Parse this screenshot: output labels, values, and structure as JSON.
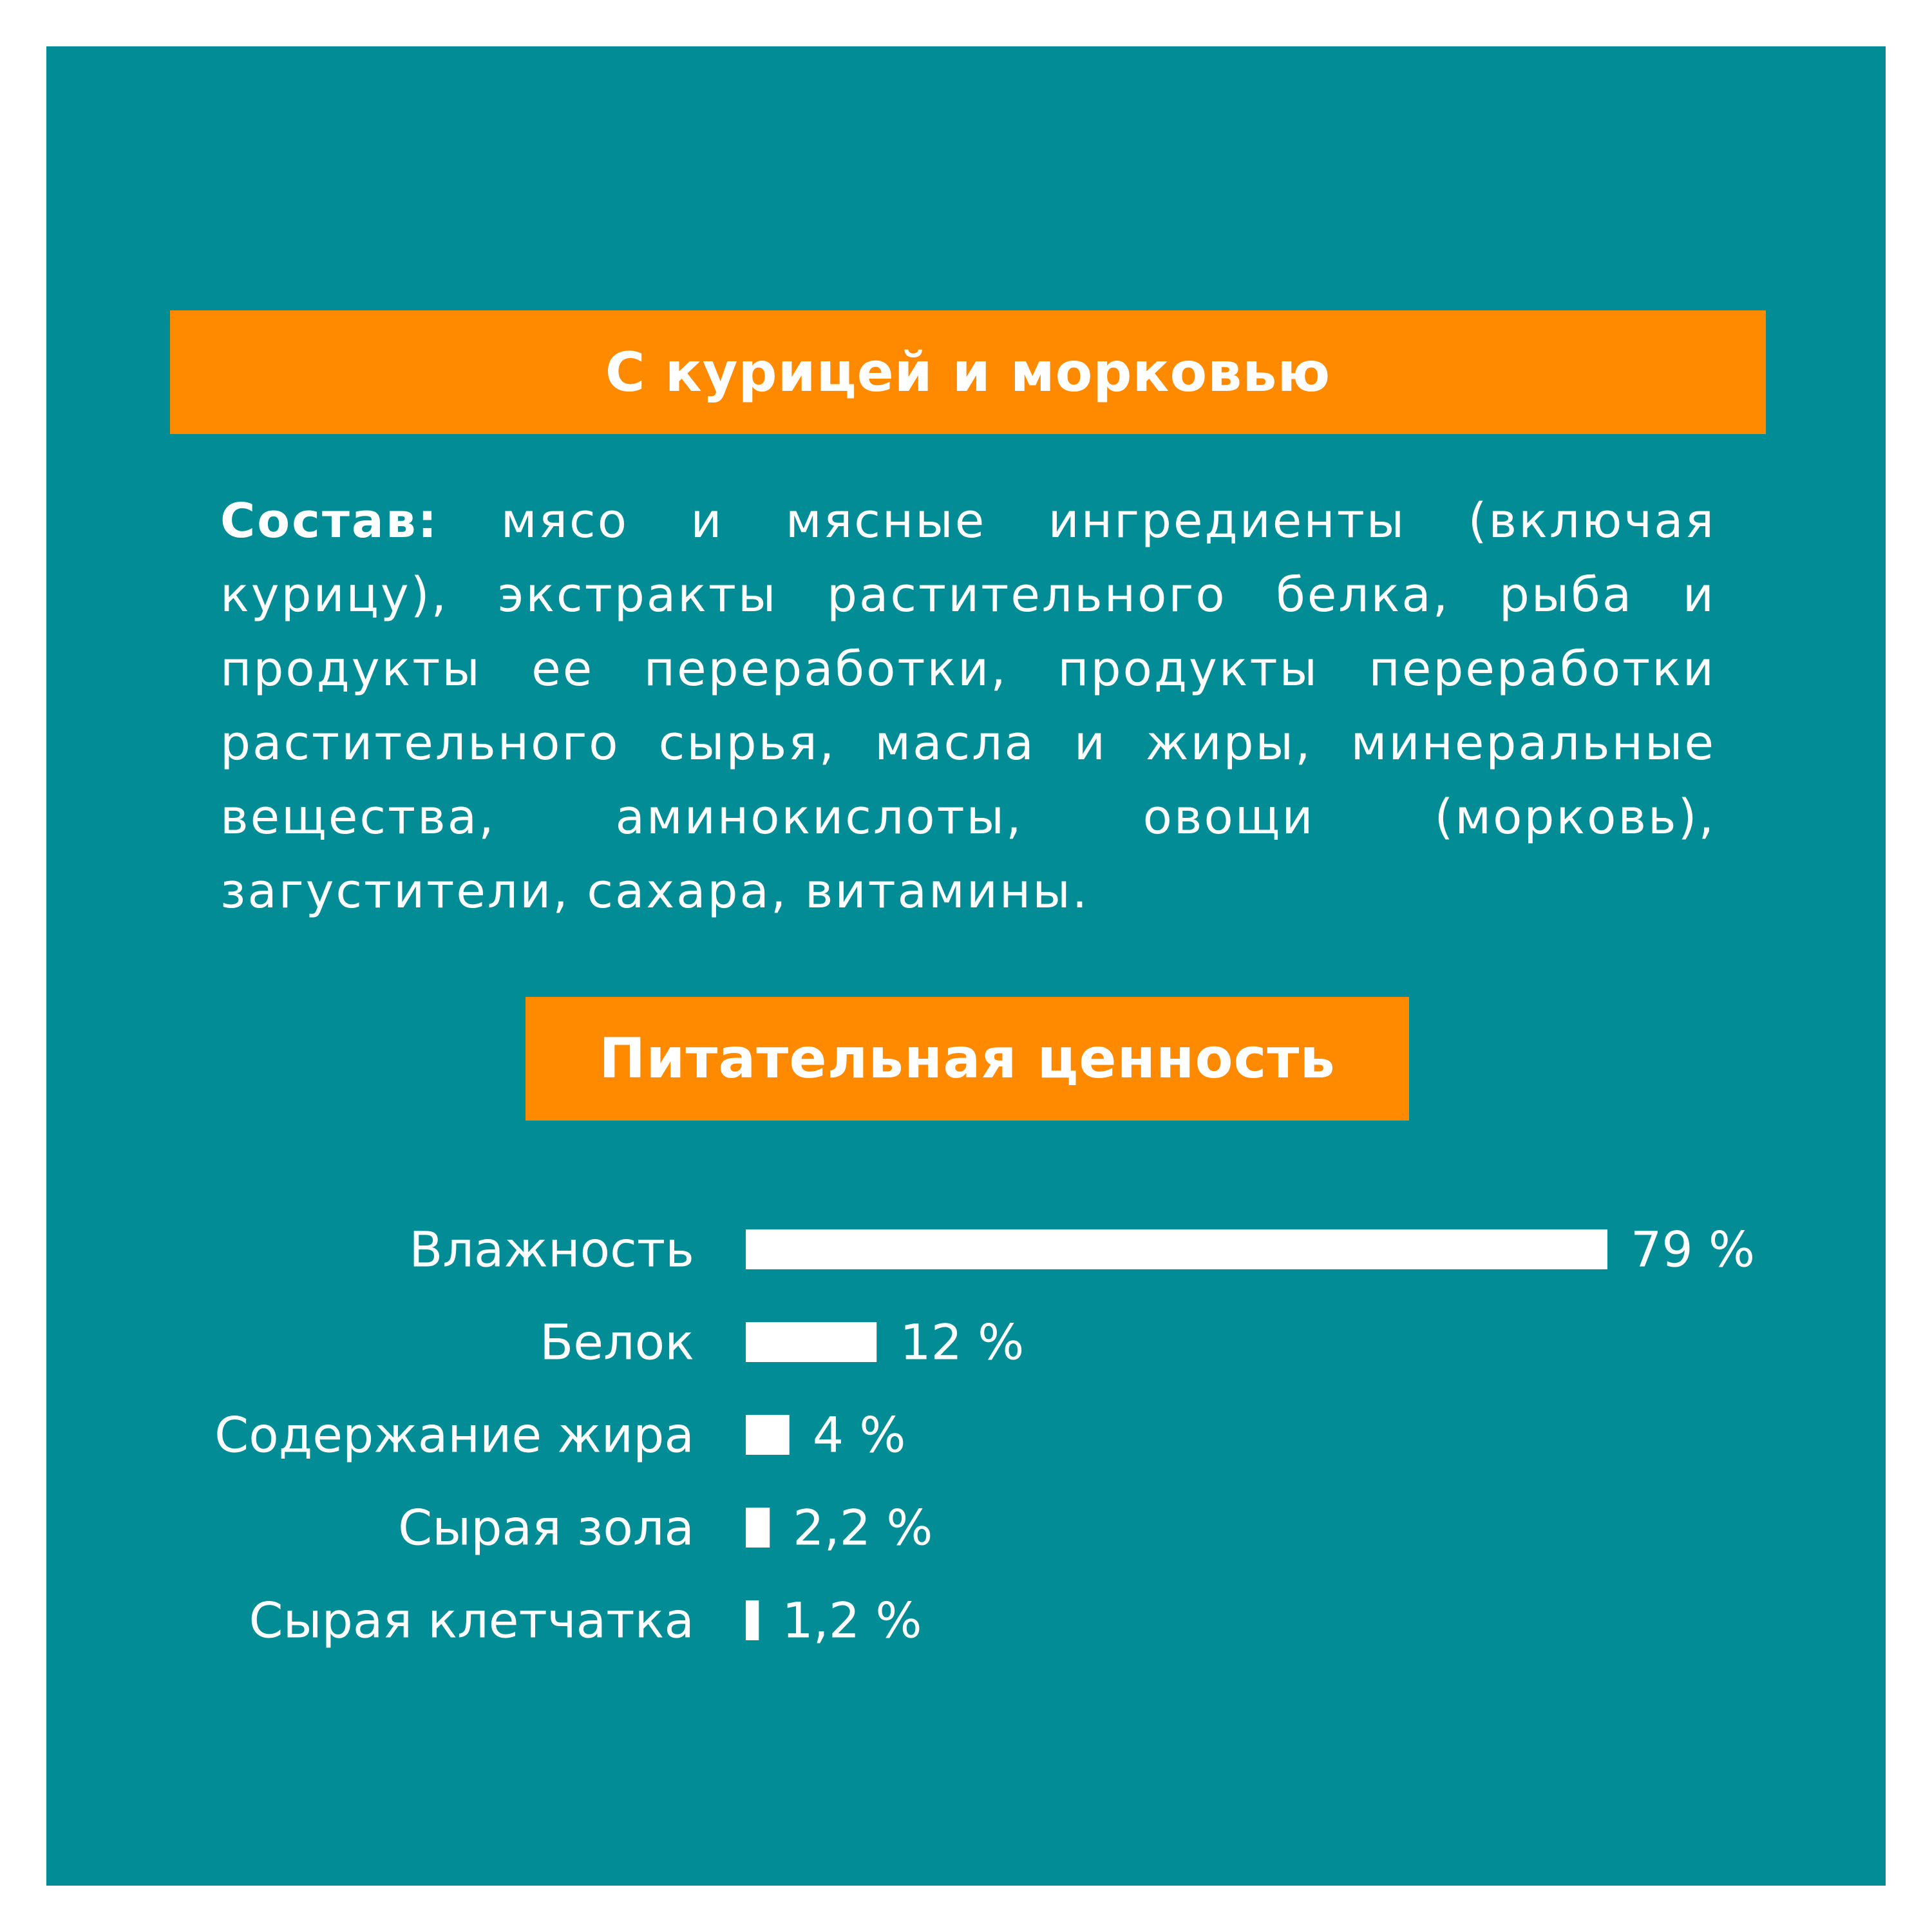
{
  "colors": {
    "background": "#028c95",
    "banner": "#ff8a00",
    "text": "#ffffff",
    "bar": "#ffffff"
  },
  "header": {
    "title": "С курицей и морковью"
  },
  "ingredients": {
    "label": "Состав:",
    "text": "мясо и мясные ингредиенты (включая курицу), экстракты растительного белка, рыба и продукты ее переработки, продукты переработки растительного сырья, масла и жиры, минеральные вещества, аминокислоты, овощи (морковь), загустители, сахара, витамины."
  },
  "nutrition": {
    "title": "Питательная ценность"
  },
  "chart_data": {
    "type": "bar",
    "orientation": "horizontal",
    "categories": [
      "Влажность",
      "Белок",
      "Содержание жира",
      "Сырая зола",
      "Сырая клетчатка"
    ],
    "values": [
      79,
      12,
      4,
      2.2,
      1.2
    ],
    "value_labels": [
      "79 %",
      "12 %",
      "4 %",
      "2,2 %",
      "1,2 %"
    ],
    "unit": "%",
    "xlim": [
      0,
      79
    ],
    "grid": false,
    "legend": "none"
  }
}
